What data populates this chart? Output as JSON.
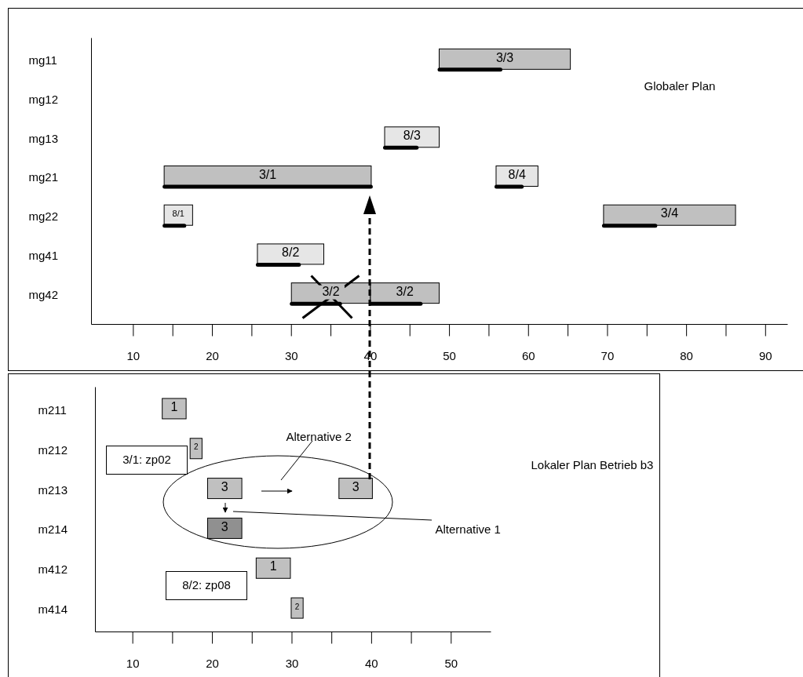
{
  "chart_data": [
    {
      "type": "bar",
      "orientation": "horizontal",
      "title": "Globaler Plan",
      "categories": [
        "mg11",
        "mg12",
        "mg13",
        "mg21",
        "mg22",
        "mg41",
        "mg42"
      ],
      "series": [
        {
          "type": "bar",
          "color": "#c0c0c0",
          "base": [
            48.7,
            null,
            null,
            13.9,
            69.5,
            null,
            30.0
          ],
          "values": [
            16.6,
            null,
            null,
            26.2,
            16.7,
            null,
            10.0
          ]
        },
        {
          "type": "bar",
          "color": "#c0c0c0",
          "base": [
            null,
            null,
            null,
            null,
            null,
            null,
            40.0
          ],
          "values": [
            null,
            null,
            null,
            null,
            null,
            null,
            8.7
          ]
        },
        {
          "type": "bar",
          "color": "#e6e6e6",
          "base": [
            null,
            null,
            41.8,
            55.9,
            13.9,
            25.7,
            null
          ],
          "values": [
            null,
            null,
            6.9,
            5.3,
            3.6,
            8.4,
            null
          ]
        },
        {
          "type": "bar",
          "color": "#000000",
          "base": [
            48.7,
            null,
            41.8,
            13.9,
            13.9,
            25.7,
            30.0
          ],
          "values": [
            7.8,
            null,
            4.1,
            26.2,
            2.6,
            5.3,
            6.2
          ]
        },
        {
          "type": "bar",
          "color": "#000000",
          "base": [
            null,
            null,
            null,
            55.9,
            69.5,
            null,
            40.0
          ],
          "values": [
            null,
            null,
            null,
            3.3,
            6.6,
            null,
            6.4
          ]
        }
      ],
      "xlim": [
        4.7,
        92.8
      ],
      "xticks": [
        10,
        {
          "value": 15,
          "label": null
        },
        20,
        {
          "value": 25,
          "label": null
        },
        30,
        {
          "value": 35,
          "label": null
        },
        40,
        {
          "value": 45,
          "label": null
        },
        50,
        {
          "value": 55,
          "label": null
        },
        60,
        {
          "value": 65,
          "label": null
        },
        70,
        {
          "value": 75,
          "label": null
        },
        80,
        {
          "value": 85,
          "label": null
        },
        90
      ],
      "annotations": [
        "3/3",
        "8/3",
        "3/1",
        "8/4",
        "8/1",
        "3/4",
        "8/2",
        "3/2",
        "3/2"
      ]
    },
    {
      "type": "bar",
      "orientation": "horizontal",
      "categories": [
        "m211",
        "m212",
        "m213",
        "m214",
        "m412",
        "m414"
      ],
      "series": [
        {
          "type": "bar",
          "color": "#c0c0c0",
          "base": [
            13.7,
            17.2,
            19.4,
            null,
            25.5,
            29.9
          ],
          "values": [
            3.0,
            1.5,
            4.3,
            null,
            4.3,
            1.5
          ]
        },
        {
          "type": "bar",
          "color": "#c0c0c0",
          "base": [
            null,
            null,
            35.9,
            null,
            null,
            null
          ],
          "values": [
            null,
            null,
            4.2,
            null,
            null,
            null
          ]
        },
        {
          "type": "bar",
          "color": "#909090",
          "base": [
            null,
            null,
            null,
            19.4,
            null,
            null
          ],
          "values": [
            null,
            null,
            null,
            4.3,
            null,
            null
          ]
        }
      ],
      "xlim": [
        5.3,
        55
      ],
      "xticks": [
        10,
        {
          "value": 15,
          "label": null
        },
        20,
        {
          "value": 25,
          "label": null
        },
        30,
        {
          "value": 35,
          "label": null
        },
        40,
        {
          "value": 45,
          "label": null
        },
        50
      ],
      "annotations": [
        "1",
        "2",
        "3",
        "3",
        "3",
        "1",
        "2",
        "3/1: zp02",
        "8/2: zp08",
        "Alternative 2",
        "Alternative 1",
        "Lokaler Plan Betrieb b3"
      ]
    }
  ]
}
